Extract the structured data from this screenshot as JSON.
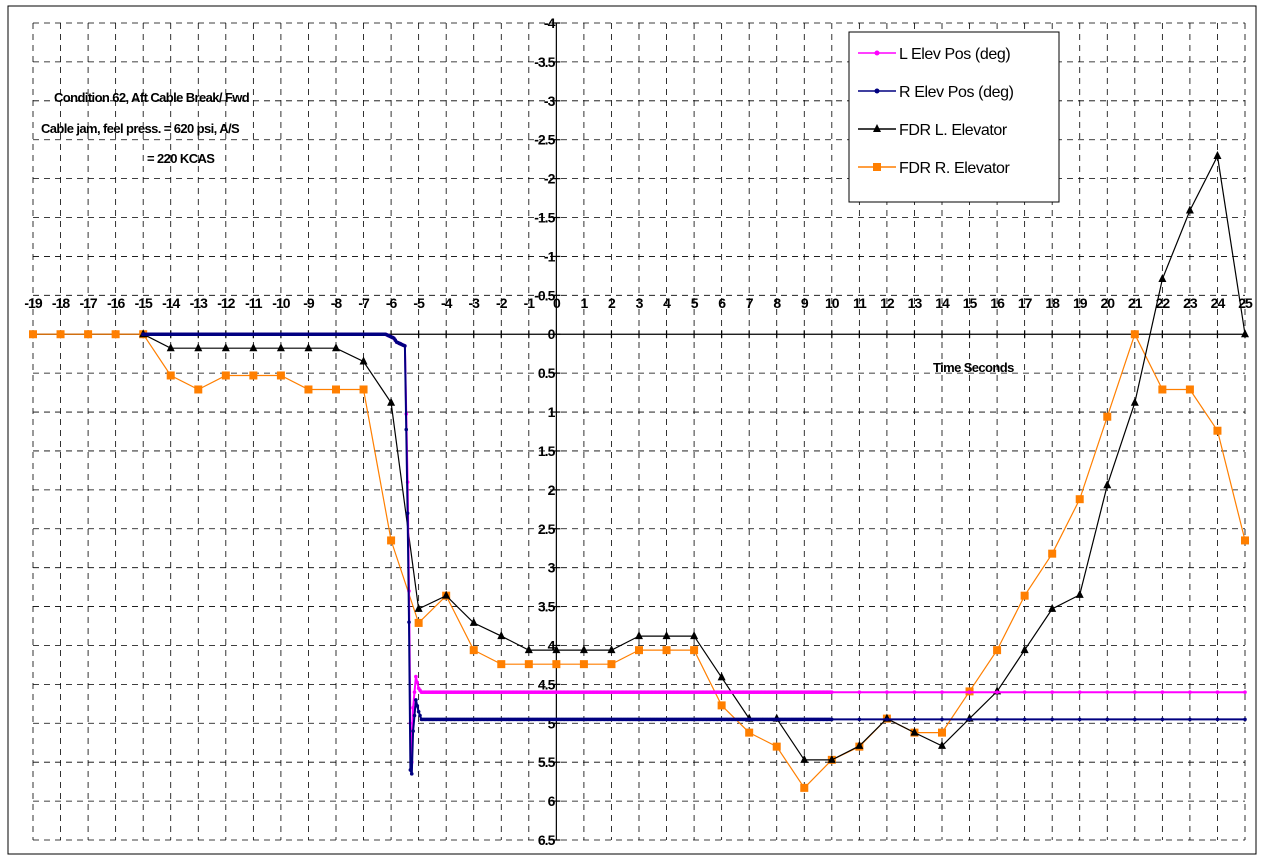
{
  "chart_data": {
    "type": "line",
    "title": "",
    "annotation_lines": [
      "Condition 62, Aft Cable Break/ Fwd",
      "Cable jam, feel press. = 620 psi, A/S",
      "= 220 KCAS"
    ],
    "xlabel": "Time Seconds",
    "ylabel": "",
    "xlim": [
      -19,
      25
    ],
    "ylim": [
      6.5,
      -4
    ],
    "y_reversed": true,
    "x_ticks": [
      -19,
      -18,
      -17,
      -16,
      -15,
      -14,
      -13,
      -12,
      -11,
      -10,
      -9,
      -8,
      -7,
      -6,
      -5,
      -4,
      -3,
      -2,
      -1,
      0,
      1,
      2,
      3,
      4,
      5,
      6,
      7,
      8,
      9,
      10,
      11,
      12,
      13,
      14,
      15,
      16,
      17,
      18,
      19,
      20,
      21,
      22,
      23,
      24,
      25
    ],
    "y_ticks": [
      "-4",
      "-3.5",
      "-3",
      "-2.5",
      "-2",
      "-1.5",
      "-1",
      "-0.5",
      "0",
      "0.5",
      "1",
      "1.5",
      "2",
      "2.5",
      "3",
      "3.5",
      "4",
      "4.5",
      "5",
      "5.5",
      "6",
      "6.5"
    ],
    "grid": true,
    "legend_position": "top-right",
    "series": [
      {
        "name": "L Elev Pos (deg)",
        "color": "#ff00ff",
        "marker": "dot",
        "x": [
          -15,
          -6.2,
          -5.9,
          -5.8,
          -5.5,
          -5.4,
          -5.35,
          -5.3,
          -5.25,
          -5.2,
          -5.1,
          -5.0,
          -4.9,
          -4.5,
          0,
          5,
          10,
          11,
          12,
          13,
          14,
          15,
          16,
          17,
          18,
          19,
          20,
          21,
          22,
          23,
          24,
          25
        ],
        "y": [
          0,
          0,
          0.05,
          0.1,
          0.15,
          1.9,
          3.3,
          5.0,
          5.5,
          4.8,
          4.4,
          4.55,
          4.6,
          4.6,
          4.6,
          4.6,
          4.6,
          4.6,
          4.6,
          4.6,
          4.6,
          4.6,
          4.6,
          4.6,
          4.6,
          4.6,
          4.6,
          4.6,
          4.6,
          4.6,
          4.6,
          4.6
        ]
      },
      {
        "name": "R Elev Pos (deg)",
        "color": "#000080",
        "marker": "dot",
        "x": [
          -15,
          -6.2,
          -5.9,
          -5.8,
          -5.5,
          -5.4,
          -5.35,
          -5.3,
          -5.25,
          -5.2,
          -5.1,
          -5.0,
          -4.9,
          -4.5,
          0,
          5,
          10,
          11,
          12,
          13,
          14,
          15,
          16,
          17,
          18,
          19,
          20,
          21,
          22,
          23,
          24,
          25
        ],
        "y": [
          0,
          0,
          0.05,
          0.1,
          0.15,
          2.3,
          3.7,
          5.6,
          5.65,
          5.1,
          4.7,
          4.85,
          4.95,
          4.95,
          4.95,
          4.95,
          4.95,
          4.95,
          4.95,
          4.95,
          4.95,
          4.95,
          4.95,
          4.95,
          4.95,
          4.95,
          4.95,
          4.95,
          4.95,
          4.95,
          4.95,
          4.95
        ]
      },
      {
        "name": "FDR L. Elevator",
        "color": "#000000",
        "marker": "triangle",
        "x": [
          -15,
          -14,
          -13,
          -12,
          -11,
          -10,
          -9,
          -8,
          -7,
          -6,
          -5,
          -4,
          -3,
          -2,
          -1,
          0,
          1,
          2,
          3,
          4,
          5,
          6,
          7,
          8,
          9,
          10,
          11,
          12,
          13,
          14,
          15,
          16,
          17,
          18,
          19,
          20,
          21,
          22,
          23,
          24,
          25
        ],
        "y": [
          0,
          0.18,
          0.18,
          0.18,
          0.18,
          0.18,
          0.18,
          0.18,
          0.35,
          0.88,
          3.53,
          3.36,
          3.71,
          3.88,
          4.06,
          4.06,
          4.06,
          4.06,
          3.88,
          3.88,
          3.88,
          4.41,
          4.94,
          4.94,
          5.47,
          5.47,
          5.29,
          4.94,
          5.12,
          5.29,
          4.94,
          4.59,
          4.06,
          3.53,
          3.35,
          1.94,
          0.88,
          -0.71,
          -1.59,
          -2.29,
          0
        ]
      },
      {
        "name": "FDR R. Elevator",
        "color": "#ff7f00",
        "marker": "square",
        "x": [
          -19,
          -18,
          -17,
          -16,
          -15,
          -14,
          -13,
          -12,
          -11,
          -10,
          -9,
          -8,
          -7,
          -6,
          -5,
          -4,
          -3,
          -2,
          -1,
          0,
          1,
          2,
          3,
          4,
          5,
          6,
          7,
          8,
          9,
          10,
          11,
          12,
          13,
          14,
          15,
          16,
          17,
          18,
          19,
          20,
          21,
          22,
          23,
          24,
          25
        ],
        "y": [
          0,
          0,
          0,
          0,
          0,
          0.53,
          0.71,
          0.53,
          0.53,
          0.53,
          0.71,
          0.71,
          0.71,
          2.65,
          3.71,
          3.36,
          4.06,
          4.24,
          4.24,
          4.24,
          4.24,
          4.24,
          4.06,
          4.06,
          4.06,
          4.77,
          5.12,
          5.3,
          5.83,
          5.47,
          5.3,
          4.94,
          5.12,
          5.12,
          4.59,
          4.06,
          3.36,
          2.82,
          2.12,
          1.06,
          0,
          0.71,
          0.71,
          1.24,
          2.65
        ]
      }
    ]
  }
}
